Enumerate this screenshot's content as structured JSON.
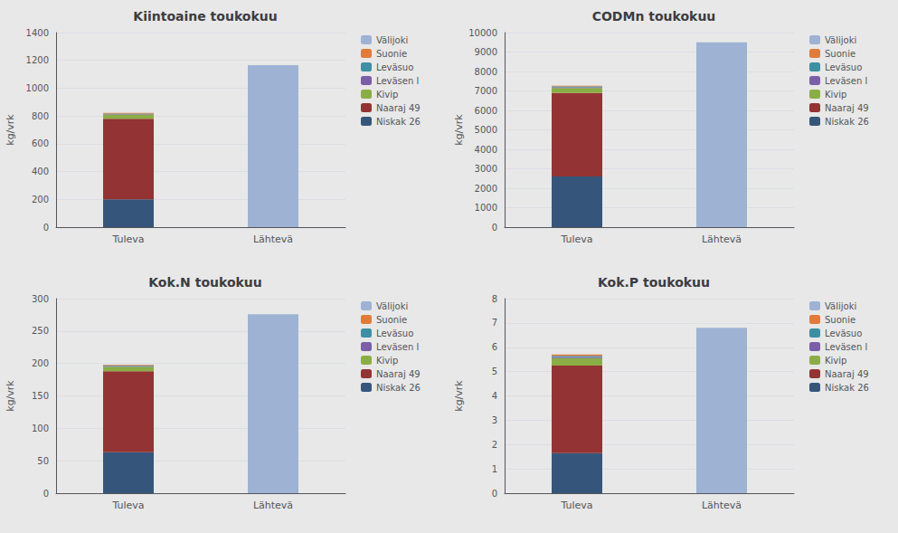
{
  "chart_data": [
    {
      "type": "bar",
      "stacked": true,
      "title": "Kiintoaine toukokuu",
      "ylabel": "kg/vrk",
      "categories": [
        "Tuleva",
        "Lähtevä"
      ],
      "series": [
        {
          "name": "Niskak 26",
          "color": "#35567A",
          "values": [
            200,
            0
          ]
        },
        {
          "name": "Naaraj 49",
          "color": "#943333",
          "values": [
            580,
            0
          ]
        },
        {
          "name": "Kivip",
          "color": "#8BAD45",
          "values": [
            30,
            0
          ]
        },
        {
          "name": "Leväsen l",
          "color": "#7B5EA7",
          "values": [
            4,
            0
          ]
        },
        {
          "name": "Leväsuo",
          "color": "#3E8FA3",
          "values": [
            4,
            0
          ]
        },
        {
          "name": "Suonie",
          "color": "#E07B39",
          "values": [
            4,
            0
          ]
        },
        {
          "name": "Välijoki",
          "color": "#9EB3D4",
          "values": [
            0,
            1165
          ]
        }
      ],
      "ylim": [
        0,
        1400
      ],
      "yticks": [
        0,
        200,
        400,
        600,
        800,
        1000,
        1200,
        1400
      ],
      "grid": true,
      "legend": "right"
    },
    {
      "type": "bar",
      "stacked": true,
      "title": "CODMn toukokuu",
      "ylabel": "kg/vrk",
      "categories": [
        "Tuleva",
        "Lähtevä"
      ],
      "series": [
        {
          "name": "Niskak 26",
          "color": "#35567A",
          "values": [
            2600,
            0
          ]
        },
        {
          "name": "Naaraj 49",
          "color": "#943333",
          "values": [
            4300,
            0
          ]
        },
        {
          "name": "Kivip",
          "color": "#8BAD45",
          "values": [
            250,
            0
          ]
        },
        {
          "name": "Leväsen l",
          "color": "#7B5EA7",
          "values": [
            40,
            0
          ]
        },
        {
          "name": "Leväsuo",
          "color": "#3E8FA3",
          "values": [
            40,
            0
          ]
        },
        {
          "name": "Suonie",
          "color": "#E07B39",
          "values": [
            40,
            0
          ]
        },
        {
          "name": "Välijoki",
          "color": "#9EB3D4",
          "values": [
            0,
            9500
          ]
        }
      ],
      "ylim": [
        0,
        10000
      ],
      "yticks": [
        0,
        1000,
        2000,
        3000,
        4000,
        5000,
        6000,
        7000,
        8000,
        9000,
        10000
      ],
      "grid": true,
      "legend": "right"
    },
    {
      "type": "bar",
      "stacked": true,
      "title": "Kok.N toukokuu",
      "ylabel": "kg/vrk",
      "categories": [
        "Tuleva",
        "Lähtevä"
      ],
      "series": [
        {
          "name": "Niskak 26",
          "color": "#35567A",
          "values": [
            63,
            0
          ]
        },
        {
          "name": "Naaraj 49",
          "color": "#943333",
          "values": [
            125,
            0
          ]
        },
        {
          "name": "Kivip",
          "color": "#8BAD45",
          "values": [
            7,
            0
          ]
        },
        {
          "name": "Leväsen l",
          "color": "#7B5EA7",
          "values": [
            1,
            0
          ]
        },
        {
          "name": "Leväsuo",
          "color": "#3E8FA3",
          "values": [
            1,
            0
          ]
        },
        {
          "name": "Suonie",
          "color": "#E07B39",
          "values": [
            1,
            0
          ]
        },
        {
          "name": "Välijoki",
          "color": "#9EB3D4",
          "values": [
            0,
            276
          ]
        }
      ],
      "ylim": [
        0,
        300
      ],
      "yticks": [
        0,
        50,
        100,
        150,
        200,
        250,
        300
      ],
      "grid": true,
      "legend": "right"
    },
    {
      "type": "bar",
      "stacked": true,
      "title": "Kok.P toukokuu",
      "ylabel": "kg/vrk",
      "categories": [
        "Tuleva",
        "Lähtevä"
      ],
      "series": [
        {
          "name": "Niskak 26",
          "color": "#35567A",
          "values": [
            1.65,
            0
          ]
        },
        {
          "name": "Naaraj 49",
          "color": "#943333",
          "values": [
            3.6,
            0
          ]
        },
        {
          "name": "Kivip",
          "color": "#8BAD45",
          "values": [
            0.3,
            0
          ]
        },
        {
          "name": "Leväsen l",
          "color": "#7B5EA7",
          "values": [
            0.05,
            0
          ]
        },
        {
          "name": "Leväsuo",
          "color": "#3E8FA3",
          "values": [
            0.05,
            0
          ]
        },
        {
          "name": "Suonie",
          "color": "#E07B39",
          "values": [
            0.05,
            0
          ]
        },
        {
          "name": "Välijoki",
          "color": "#9EB3D4",
          "values": [
            0,
            6.8
          ]
        }
      ],
      "ylim": [
        0,
        8
      ],
      "yticks": [
        0,
        1,
        2,
        3,
        4,
        5,
        6,
        7,
        8
      ],
      "grid": true,
      "legend": "right"
    }
  ]
}
